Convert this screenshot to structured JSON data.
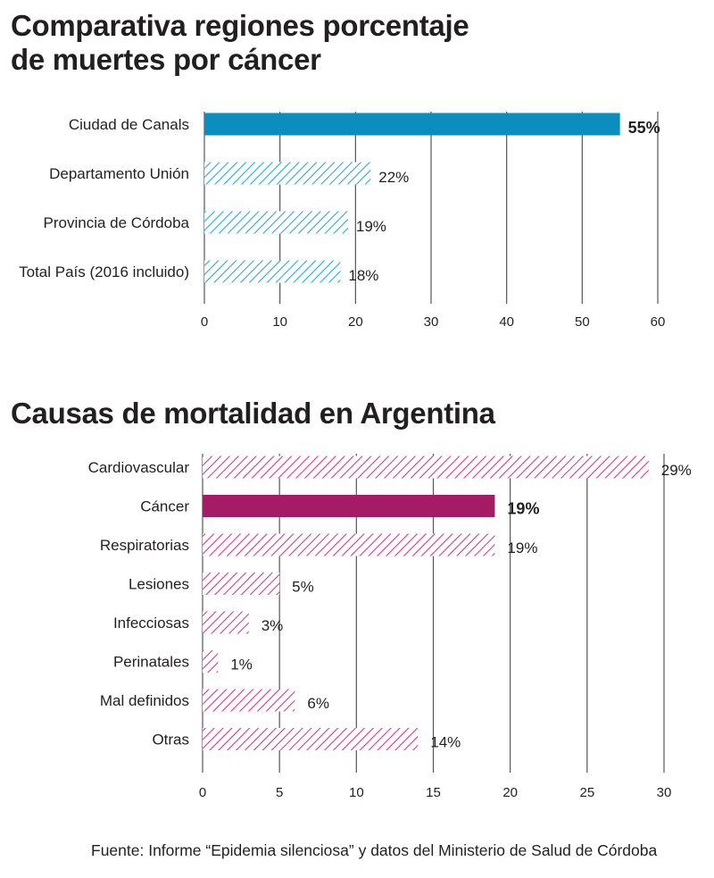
{
  "chart_data": [
    {
      "type": "bar",
      "orientation": "horizontal",
      "title": "Comparativa regiones porcentaje de muertes por cáncer",
      "categories": [
        "Ciudad de Canals",
        "Departamento Unión",
        "Provincia de Córdoba",
        "Total País (2016 incluido)"
      ],
      "values": [
        55,
        22,
        19,
        18
      ],
      "value_labels": [
        "55%",
        "22%",
        "19%",
        "18%"
      ],
      "highlight_index": 0,
      "xlim": [
        0,
        60
      ],
      "xticks": [
        0,
        10,
        20,
        30,
        40,
        50,
        60
      ],
      "grid": true,
      "colors": {
        "solid": "#0a8ebf",
        "hatch": "#29a9dc"
      }
    },
    {
      "type": "bar",
      "orientation": "horizontal",
      "title": "Causas de mortalidad en Argentina",
      "categories": [
        "Cardiovascular",
        "Cáncer",
        "Respiratorias",
        "Lesiones",
        "Infecciosas",
        "Perinatales",
        "Mal definidos",
        "Otras"
      ],
      "values": [
        29,
        19,
        19,
        5,
        3,
        1,
        6,
        14
      ],
      "value_labels": [
        "29%",
        "19%",
        "19%",
        "5%",
        "3%",
        "1%",
        "6%",
        "14%"
      ],
      "highlight_index": 1,
      "xlim": [
        0,
        30
      ],
      "xticks": [
        0,
        5,
        10,
        15,
        20,
        25,
        30
      ],
      "grid": true,
      "colors": {
        "solid": "#a51b66",
        "hatch": "#d63a8c"
      }
    }
  ],
  "source": "Fuente: Informe “Epidemia silenciosa” y datos del Ministerio de Salud de Córdoba"
}
